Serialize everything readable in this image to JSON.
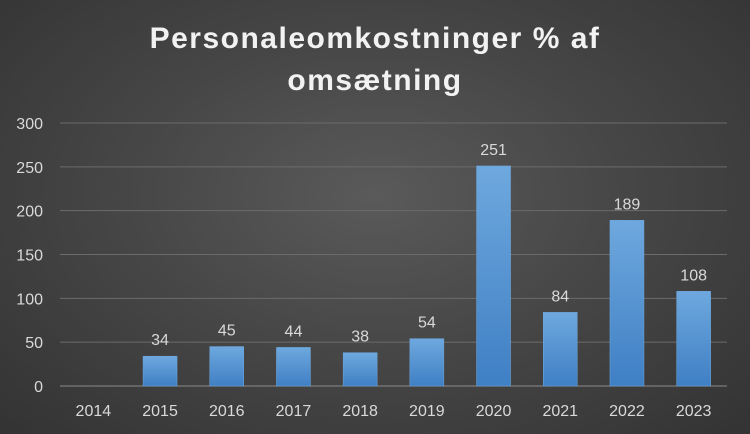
{
  "chart_data": {
    "type": "bar",
    "title": "Personaleomkostninger % af omsætning",
    "title_lines": [
      "Personaleomkostninger % af",
      "omsætning"
    ],
    "xlabel": "",
    "ylabel": "",
    "categories": [
      "2014",
      "2015",
      "2016",
      "2017",
      "2018",
      "2019",
      "2020",
      "2021",
      "2022",
      "2023"
    ],
    "values": [
      null,
      34,
      45,
      44,
      38,
      54,
      251,
      84,
      189,
      108
    ],
    "data_labels": [
      "",
      "34",
      "45",
      "44",
      "38",
      "54",
      "251",
      "84",
      "189",
      "108"
    ],
    "ylim": [
      0,
      300
    ],
    "yticks": [
      0,
      50,
      100,
      150,
      200,
      250,
      300
    ],
    "grid": true,
    "legend": "none",
    "colors": {
      "bar": "#5b9bd5",
      "bar_light": "#6ea8de",
      "bar_dark": "#3f7fc4",
      "grid": "#6b6b6b",
      "text": "#d9d9d9",
      "title": "#f2f2f2"
    }
  }
}
